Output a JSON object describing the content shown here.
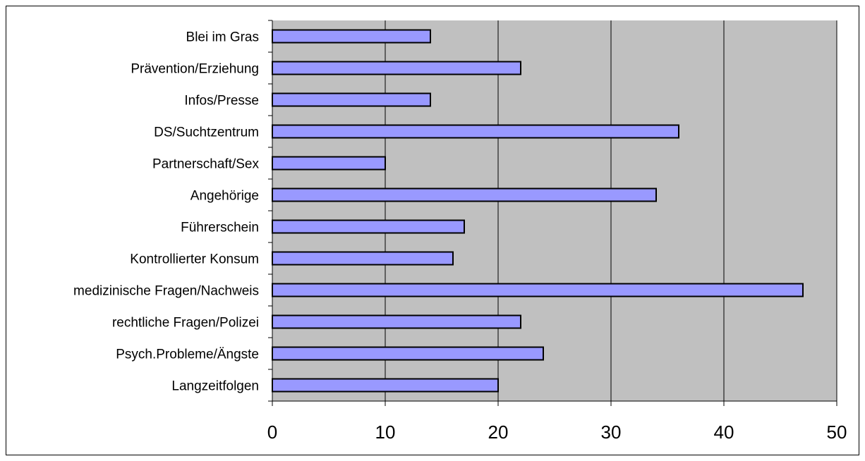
{
  "colors": {
    "plot_background": "#c0c0c0",
    "bar_fill": "#9999ff",
    "bar_stroke": "#000000",
    "gridline": "#000000",
    "frame": "#000000"
  },
  "chart_data": {
    "type": "bar",
    "orientation": "horizontal",
    "categories": [
      "Blei im Gras",
      "Prävention/Erziehung",
      "Infos/Presse",
      "DS/Suchtzentrum",
      "Partnerschaft/Sex",
      "Angehörige",
      "Führerschein",
      "Kontrollierter Konsum",
      "medizinische Fragen/Nachweis",
      "rechtliche Fragen/Polizei",
      "Psych.Probleme/Ängste",
      "Langzeitfolgen"
    ],
    "values": [
      14,
      22,
      14,
      36,
      10,
      34,
      17,
      16,
      47,
      22,
      24,
      20
    ],
    "xlim": [
      0,
      50
    ],
    "x_ticks": [
      0,
      10,
      20,
      30,
      40,
      50
    ],
    "x_tick_labels": [
      "0",
      "10",
      "20",
      "30",
      "40",
      "50"
    ],
    "grid": "vertical",
    "legend": "none",
    "title": "",
    "xlabel": "",
    "ylabel": ""
  }
}
